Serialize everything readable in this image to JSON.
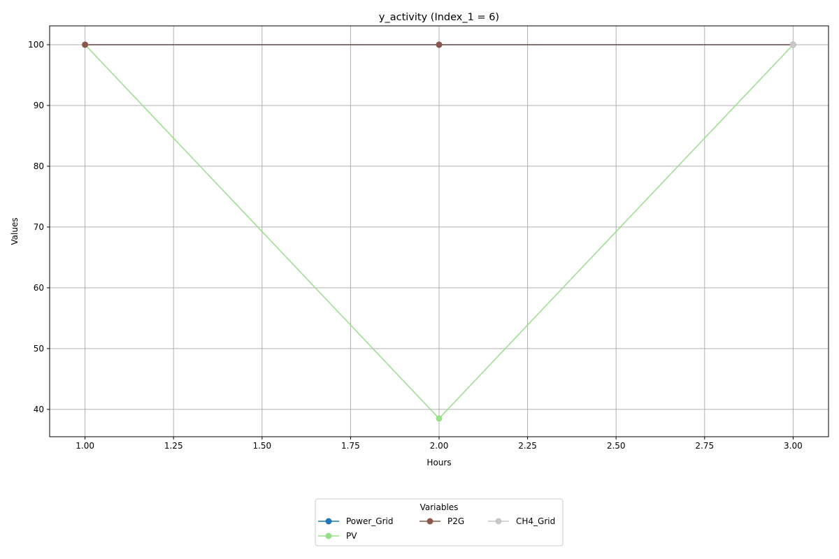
{
  "chart_data": {
    "type": "line",
    "title": "y_activity (Index_1 = 6)",
    "xlabel": "Hours",
    "ylabel": "Values",
    "x": [
      1,
      2,
      3
    ],
    "xlim": [
      0.9,
      3.1
    ],
    "ylim": [
      35.5,
      103.1
    ],
    "xticks": [
      1.0,
      1.25,
      1.5,
      1.75,
      2.0,
      2.25,
      2.5,
      2.75,
      3.0
    ],
    "xtick_labels": [
      "1.00",
      "1.25",
      "1.50",
      "1.75",
      "2.00",
      "2.25",
      "2.50",
      "2.75",
      "3.00"
    ],
    "yticks": [
      40,
      50,
      60,
      70,
      80,
      90,
      100
    ],
    "ytick_labels": [
      "40",
      "50",
      "60",
      "70",
      "80",
      "90",
      "100"
    ],
    "grid": true,
    "legend": {
      "title": "Variables",
      "placement": "bottom-center",
      "columns": 3
    },
    "series": [
      {
        "name": "Power_Grid",
        "color": "#1f77b4",
        "marker": "circle",
        "values": [
          100,
          100,
          100
        ]
      },
      {
        "name": "PV",
        "color": "#98df8a",
        "marker": "circle",
        "values": [
          100,
          38.5,
          100
        ]
      },
      {
        "name": "P2G",
        "color": "#8c564b",
        "marker": "circle",
        "values": [
          100,
          100,
          100
        ]
      },
      {
        "name": "CH4_Grid",
        "color": "#c7c7c7",
        "marker": "circle",
        "values": [
          null,
          null,
          100
        ]
      }
    ]
  }
}
